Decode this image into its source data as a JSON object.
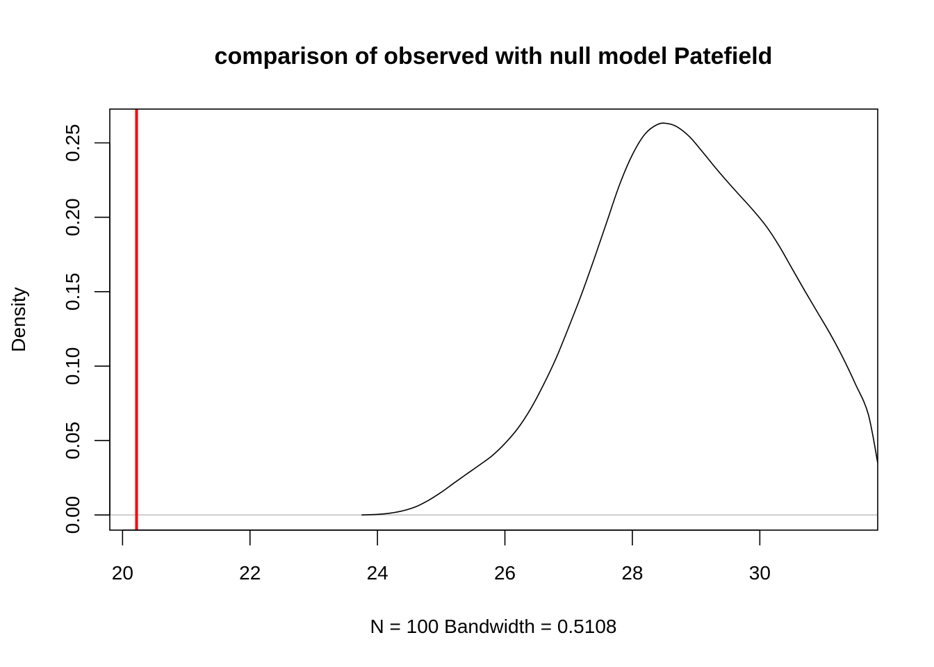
{
  "chart_data": {
    "type": "line",
    "title": "comparison of observed with null model Patefield",
    "xlabel": "N = 100   Bandwidth = 0.5108",
    "ylabel": "Density",
    "xlim": [
      19.8,
      31.85
    ],
    "ylim": [
      -0.0102,
      0.2727
    ],
    "x_ticks": [
      20,
      22,
      24,
      26,
      28,
      30
    ],
    "x_tick_labels": [
      "20",
      "22",
      "24",
      "26",
      "28",
      "30"
    ],
    "y_ticks": [
      0.0,
      0.05,
      0.1,
      0.15,
      0.2,
      0.25
    ],
    "y_tick_labels": [
      "0.00",
      "0.05",
      "0.10",
      "0.15",
      "0.20",
      "0.25"
    ],
    "series": [
      {
        "color": "#000000",
        "x": [
          23.75,
          24.0,
          24.2,
          24.4,
          24.6,
          24.8,
          25.0,
          25.2,
          25.4,
          25.6,
          25.8,
          26.0,
          26.2,
          26.4,
          26.6,
          26.8,
          27.0,
          27.2,
          27.4,
          27.6,
          27.8,
          28.0,
          28.2,
          28.4,
          28.55,
          28.7,
          28.9,
          29.1,
          29.3,
          29.5,
          29.7,
          29.9,
          30.1,
          30.3,
          30.5,
          30.7,
          30.9,
          31.1,
          31.3,
          31.5,
          31.7,
          31.85
        ],
        "y": [
          0.0,
          0.0004,
          0.0012,
          0.0028,
          0.0055,
          0.0098,
          0.0152,
          0.0214,
          0.0275,
          0.0335,
          0.0398,
          0.048,
          0.058,
          0.071,
          0.087,
          0.105,
          0.126,
          0.148,
          0.172,
          0.197,
          0.222,
          0.242,
          0.256,
          0.2625,
          0.263,
          0.2608,
          0.254,
          0.244,
          0.2335,
          0.2235,
          0.214,
          0.2045,
          0.194,
          0.181,
          0.166,
          0.151,
          0.1365,
          0.122,
          0.106,
          0.088,
          0.068,
          0.035
        ]
      }
    ],
    "reference_line": {
      "orientation": "vertical",
      "x": 20.22,
      "color": "#ff0000"
    },
    "baseline": {
      "y": 0,
      "color": "#bebebe"
    },
    "grid": false,
    "legend": "none"
  }
}
